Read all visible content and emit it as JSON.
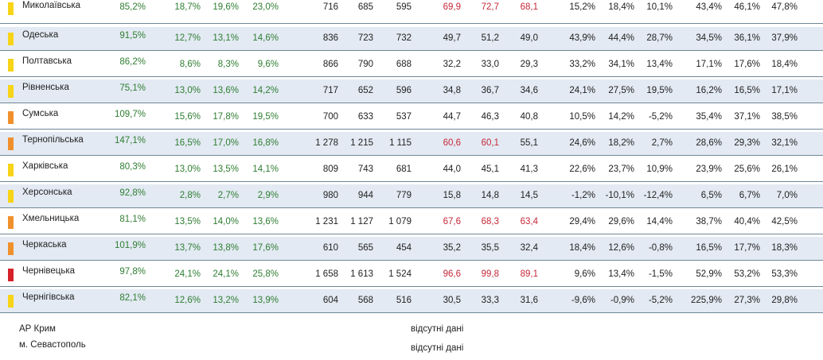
{
  "colors": {
    "yellow": "#f7d417",
    "orange": "#f0902d",
    "red": "#d6202a",
    "green_text": "#2f7d32",
    "red_text": "#c62839"
  },
  "rows": [
    {
      "name": "Миколаївська",
      "marker": "yellow",
      "cells": [
        {
          "v": "85,2%",
          "c": "green"
        },
        {
          "v": "18,7%",
          "c": "green"
        },
        {
          "v": "19,6%",
          "c": "green"
        },
        {
          "v": "23,0%",
          "c": "green"
        },
        {
          "v": "716",
          "c": "dark"
        },
        {
          "v": "685",
          "c": "dark"
        },
        {
          "v": "595",
          "c": "dark"
        },
        {
          "v": "69,9",
          "c": "red"
        },
        {
          "v": "72,7",
          "c": "red"
        },
        {
          "v": "68,1",
          "c": "red"
        },
        {
          "v": "15,2%",
          "c": "dark"
        },
        {
          "v": "18,4%",
          "c": "dark"
        },
        {
          "v": "10,1%",
          "c": "dark"
        },
        {
          "v": "43,4%",
          "c": "dark"
        },
        {
          "v": "46,1%",
          "c": "dark"
        },
        {
          "v": "47,8%",
          "c": "dark"
        }
      ]
    },
    {
      "name": "Одеська",
      "marker": "yellow",
      "cells": [
        {
          "v": "91,5%",
          "c": "green"
        },
        {
          "v": "12,7%",
          "c": "green"
        },
        {
          "v": "13,1%",
          "c": "green"
        },
        {
          "v": "14,6%",
          "c": "green"
        },
        {
          "v": "836",
          "c": "dark"
        },
        {
          "v": "723",
          "c": "dark"
        },
        {
          "v": "732",
          "c": "dark"
        },
        {
          "v": "49,7",
          "c": "dark"
        },
        {
          "v": "51,2",
          "c": "dark"
        },
        {
          "v": "49,0",
          "c": "dark"
        },
        {
          "v": "43,9%",
          "c": "dark"
        },
        {
          "v": "44,4%",
          "c": "dark"
        },
        {
          "v": "28,7%",
          "c": "dark"
        },
        {
          "v": "34,5%",
          "c": "dark"
        },
        {
          "v": "36,1%",
          "c": "dark"
        },
        {
          "v": "37,9%",
          "c": "dark"
        }
      ]
    },
    {
      "name": "Полтавська",
      "marker": "yellow",
      "cells": [
        {
          "v": "86,2%",
          "c": "green"
        },
        {
          "v": "8,6%",
          "c": "green"
        },
        {
          "v": "8,3%",
          "c": "green"
        },
        {
          "v": "9,6%",
          "c": "green"
        },
        {
          "v": "866",
          "c": "dark"
        },
        {
          "v": "790",
          "c": "dark"
        },
        {
          "v": "688",
          "c": "dark"
        },
        {
          "v": "32,2",
          "c": "dark"
        },
        {
          "v": "33,0",
          "c": "dark"
        },
        {
          "v": "29,3",
          "c": "dark"
        },
        {
          "v": "33,2%",
          "c": "dark"
        },
        {
          "v": "34,1%",
          "c": "dark"
        },
        {
          "v": "13,4%",
          "c": "dark"
        },
        {
          "v": "17,1%",
          "c": "dark"
        },
        {
          "v": "17,6%",
          "c": "dark"
        },
        {
          "v": "18,4%",
          "c": "dark"
        }
      ]
    },
    {
      "name": "Рівненська",
      "marker": "yellow",
      "cells": [
        {
          "v": "75,1%",
          "c": "green"
        },
        {
          "v": "13,0%",
          "c": "green"
        },
        {
          "v": "13,6%",
          "c": "green"
        },
        {
          "v": "14,2%",
          "c": "green"
        },
        {
          "v": "717",
          "c": "dark"
        },
        {
          "v": "652",
          "c": "dark"
        },
        {
          "v": "596",
          "c": "dark"
        },
        {
          "v": "34,8",
          "c": "dark"
        },
        {
          "v": "36,7",
          "c": "dark"
        },
        {
          "v": "34,6",
          "c": "dark"
        },
        {
          "v": "24,1%",
          "c": "dark"
        },
        {
          "v": "27,5%",
          "c": "dark"
        },
        {
          "v": "19,5%",
          "c": "dark"
        },
        {
          "v": "16,2%",
          "c": "dark"
        },
        {
          "v": "16,5%",
          "c": "dark"
        },
        {
          "v": "17,1%",
          "c": "dark"
        }
      ]
    },
    {
      "name": "Сумська",
      "marker": "orange",
      "cells": [
        {
          "v": "109,7%",
          "c": "green"
        },
        {
          "v": "15,6%",
          "c": "green"
        },
        {
          "v": "17,8%",
          "c": "green"
        },
        {
          "v": "19,5%",
          "c": "green"
        },
        {
          "v": "700",
          "c": "dark"
        },
        {
          "v": "633",
          "c": "dark"
        },
        {
          "v": "537",
          "c": "dark"
        },
        {
          "v": "44,7",
          "c": "dark"
        },
        {
          "v": "46,3",
          "c": "dark"
        },
        {
          "v": "40,8",
          "c": "dark"
        },
        {
          "v": "10,5%",
          "c": "dark"
        },
        {
          "v": "14,2%",
          "c": "dark"
        },
        {
          "v": "-5,2%",
          "c": "dark"
        },
        {
          "v": "35,4%",
          "c": "dark"
        },
        {
          "v": "37,1%",
          "c": "dark"
        },
        {
          "v": "38,5%",
          "c": "dark"
        }
      ]
    },
    {
      "name": "Тернопільська",
      "marker": "orange",
      "cells": [
        {
          "v": "147,1%",
          "c": "green"
        },
        {
          "v": "16,5%",
          "c": "green"
        },
        {
          "v": "17,0%",
          "c": "green"
        },
        {
          "v": "16,8%",
          "c": "green"
        },
        {
          "v": "1 278",
          "c": "dark"
        },
        {
          "v": "1 215",
          "c": "dark"
        },
        {
          "v": "1 115",
          "c": "dark"
        },
        {
          "v": "60,6",
          "c": "red"
        },
        {
          "v": "60,1",
          "c": "red"
        },
        {
          "v": "55,1",
          "c": "dark"
        },
        {
          "v": "24,6%",
          "c": "dark"
        },
        {
          "v": "18,2%",
          "c": "dark"
        },
        {
          "v": "2,7%",
          "c": "dark"
        },
        {
          "v": "28,6%",
          "c": "dark"
        },
        {
          "v": "29,3%",
          "c": "dark"
        },
        {
          "v": "32,1%",
          "c": "dark"
        }
      ]
    },
    {
      "name": "Харківська",
      "marker": "yellow",
      "cells": [
        {
          "v": "80,3%",
          "c": "green"
        },
        {
          "v": "13,0%",
          "c": "green"
        },
        {
          "v": "13,5%",
          "c": "green"
        },
        {
          "v": "14,1%",
          "c": "green"
        },
        {
          "v": "809",
          "c": "dark"
        },
        {
          "v": "743",
          "c": "dark"
        },
        {
          "v": "681",
          "c": "dark"
        },
        {
          "v": "44,0",
          "c": "dark"
        },
        {
          "v": "45,1",
          "c": "dark"
        },
        {
          "v": "41,3",
          "c": "dark"
        },
        {
          "v": "22,6%",
          "c": "dark"
        },
        {
          "v": "23,7%",
          "c": "dark"
        },
        {
          "v": "10,9%",
          "c": "dark"
        },
        {
          "v": "23,9%",
          "c": "dark"
        },
        {
          "v": "25,6%",
          "c": "dark"
        },
        {
          "v": "26,1%",
          "c": "dark"
        }
      ]
    },
    {
      "name": "Херсонська",
      "marker": "yellow",
      "cells": [
        {
          "v": "92,8%",
          "c": "green"
        },
        {
          "v": "2,8%",
          "c": "green"
        },
        {
          "v": "2,7%",
          "c": "green"
        },
        {
          "v": "2,9%",
          "c": "green"
        },
        {
          "v": "980",
          "c": "dark"
        },
        {
          "v": "944",
          "c": "dark"
        },
        {
          "v": "779",
          "c": "dark"
        },
        {
          "v": "15,8",
          "c": "dark"
        },
        {
          "v": "14,8",
          "c": "dark"
        },
        {
          "v": "14,5",
          "c": "dark"
        },
        {
          "v": "-1,2%",
          "c": "dark"
        },
        {
          "v": "-10,1%",
          "c": "dark"
        },
        {
          "v": "-12,4%",
          "c": "dark"
        },
        {
          "v": "6,5%",
          "c": "dark"
        },
        {
          "v": "6,7%",
          "c": "dark"
        },
        {
          "v": "7,0%",
          "c": "dark"
        }
      ]
    },
    {
      "name": "Хмельницька",
      "marker": "orange",
      "cells": [
        {
          "v": "81,1%",
          "c": "green"
        },
        {
          "v": "13,5%",
          "c": "green"
        },
        {
          "v": "14,0%",
          "c": "green"
        },
        {
          "v": "13,6%",
          "c": "green"
        },
        {
          "v": "1 231",
          "c": "dark"
        },
        {
          "v": "1 127",
          "c": "dark"
        },
        {
          "v": "1 079",
          "c": "dark"
        },
        {
          "v": "67,6",
          "c": "red"
        },
        {
          "v": "68,3",
          "c": "red"
        },
        {
          "v": "63,4",
          "c": "red"
        },
        {
          "v": "29,4%",
          "c": "dark"
        },
        {
          "v": "29,6%",
          "c": "dark"
        },
        {
          "v": "14,4%",
          "c": "dark"
        },
        {
          "v": "38,7%",
          "c": "dark"
        },
        {
          "v": "40,4%",
          "c": "dark"
        },
        {
          "v": "42,5%",
          "c": "dark"
        }
      ]
    },
    {
      "name": "Черкаська",
      "marker": "orange",
      "cells": [
        {
          "v": "101,9%",
          "c": "green"
        },
        {
          "v": "13,7%",
          "c": "green"
        },
        {
          "v": "13,8%",
          "c": "green"
        },
        {
          "v": "17,6%",
          "c": "green"
        },
        {
          "v": "610",
          "c": "dark"
        },
        {
          "v": "565",
          "c": "dark"
        },
        {
          "v": "454",
          "c": "dark"
        },
        {
          "v": "35,2",
          "c": "dark"
        },
        {
          "v": "35,5",
          "c": "dark"
        },
        {
          "v": "32,4",
          "c": "dark"
        },
        {
          "v": "18,4%",
          "c": "dark"
        },
        {
          "v": "12,6%",
          "c": "dark"
        },
        {
          "v": "-0,8%",
          "c": "dark"
        },
        {
          "v": "16,5%",
          "c": "dark"
        },
        {
          "v": "17,7%",
          "c": "dark"
        },
        {
          "v": "18,3%",
          "c": "dark"
        }
      ]
    },
    {
      "name": "Чернівецька",
      "marker": "red",
      "cells": [
        {
          "v": "97,8%",
          "c": "green"
        },
        {
          "v": "24,1%",
          "c": "green"
        },
        {
          "v": "24,1%",
          "c": "green"
        },
        {
          "v": "25,8%",
          "c": "green"
        },
        {
          "v": "1 658",
          "c": "dark"
        },
        {
          "v": "1 613",
          "c": "dark"
        },
        {
          "v": "1 524",
          "c": "dark"
        },
        {
          "v": "96,6",
          "c": "red"
        },
        {
          "v": "99,8",
          "c": "red"
        },
        {
          "v": "89,1",
          "c": "red"
        },
        {
          "v": "9,6%",
          "c": "dark"
        },
        {
          "v": "13,4%",
          "c": "dark"
        },
        {
          "v": "-1,5%",
          "c": "dark"
        },
        {
          "v": "52,9%",
          "c": "dark"
        },
        {
          "v": "53,2%",
          "c": "dark"
        },
        {
          "v": "53,3%",
          "c": "dark"
        }
      ]
    },
    {
      "name": "Чернігівська",
      "marker": "yellow",
      "cells": [
        {
          "v": "82,1%",
          "c": "green"
        },
        {
          "v": "12,6%",
          "c": "green"
        },
        {
          "v": "13,2%",
          "c": "green"
        },
        {
          "v": "13,9%",
          "c": "green"
        },
        {
          "v": "604",
          "c": "dark"
        },
        {
          "v": "568",
          "c": "dark"
        },
        {
          "v": "516",
          "c": "dark"
        },
        {
          "v": "30,5",
          "c": "dark"
        },
        {
          "v": "33,3",
          "c": "dark"
        },
        {
          "v": "31,6",
          "c": "dark"
        },
        {
          "v": "-9,6%",
          "c": "dark"
        },
        {
          "v": "-0,9%",
          "c": "dark"
        },
        {
          "v": "-5,2%",
          "c": "dark"
        },
        {
          "v": "225,9%",
          "c": "dark"
        },
        {
          "v": "27,3%",
          "c": "dark"
        },
        {
          "v": "29,8%",
          "c": "dark"
        }
      ]
    }
  ],
  "footer": [
    {
      "name": "АР Крим",
      "note": "відсутні дані"
    },
    {
      "name": "м. Севастополь",
      "note": "відсутні дані"
    }
  ]
}
